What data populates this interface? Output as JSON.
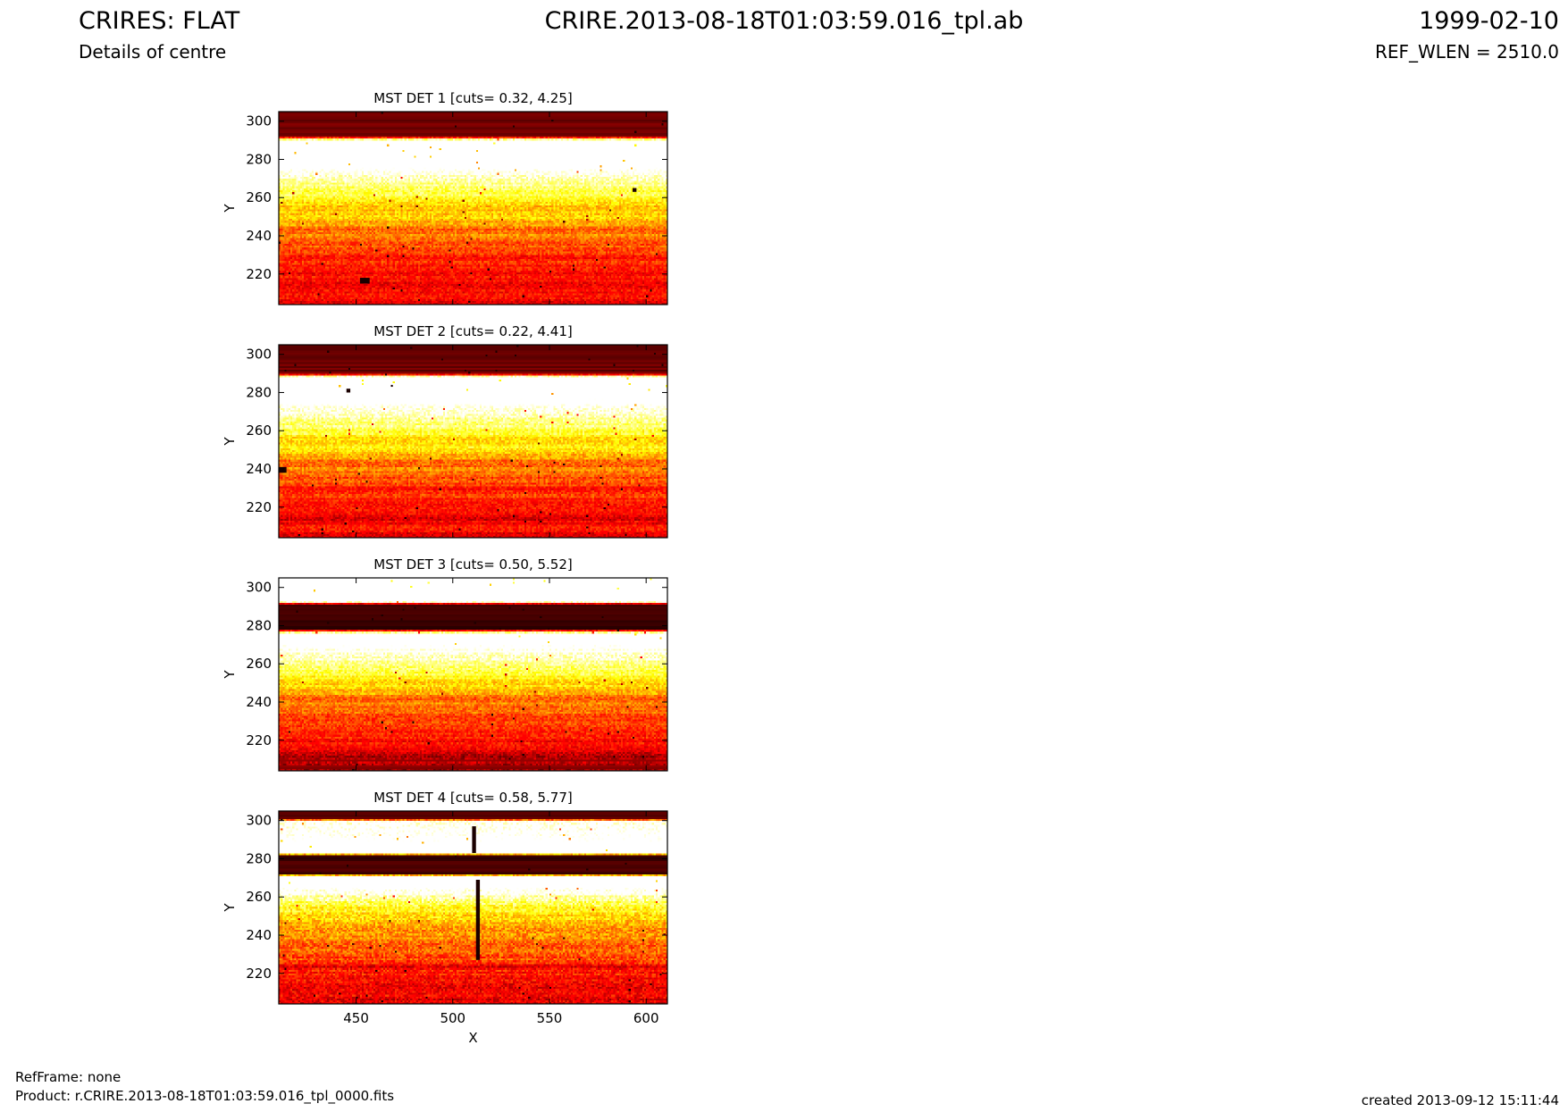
{
  "header": {
    "title": "CRIRES: FLAT",
    "subtitle": "Details of centre",
    "filename": "CRIRE.2013-08-18T01:03:59.016_tpl.ab",
    "date": "1999-02-10",
    "ref_wlen": "REF_WLEN = 2510.0"
  },
  "footer": {
    "refframe": "RefFrame: none",
    "product": "Product: r.CRIRE.2013-08-18T01:03:59.016_tpl_0000.fits",
    "created": "created 2013-09-12 15:11:44"
  },
  "colors": {
    "colormap": "hot",
    "dark_red": "#7f0000",
    "very_dark": "#3d0000",
    "red": "#e31a00",
    "orange": "#ff7f00",
    "yellow": "#ffff00",
    "white": "#ffffff"
  },
  "chart_data": [
    {
      "type": "heatmap",
      "title": "MST DET 1 [cuts= 0.32, 4.25]",
      "ylabel": "Y",
      "xlabel": "",
      "xlim": [
        410,
        611
      ],
      "ylim": [
        204,
        305
      ],
      "xticks": [
        450,
        500,
        550,
        600
      ],
      "xtick_labels_visible": false,
      "yticks": [
        220,
        240,
        260,
        280,
        300
      ],
      "profile": [
        [
          204,
          0.3
        ],
        [
          210,
          0.38
        ],
        [
          214,
          0.3
        ],
        [
          218,
          0.4
        ],
        [
          222,
          0.35
        ],
        [
          226,
          0.44
        ],
        [
          229,
          0.38
        ],
        [
          232,
          0.46
        ],
        [
          236,
          0.5
        ],
        [
          240,
          0.56
        ],
        [
          243,
          0.5
        ],
        [
          246,
          0.6
        ],
        [
          249,
          0.66
        ],
        [
          252,
          0.7
        ],
        [
          255,
          0.64
        ],
        [
          258,
          0.74
        ],
        [
          261,
          0.8
        ],
        [
          264,
          0.85
        ],
        [
          268,
          0.92
        ],
        [
          272,
          0.98
        ],
        [
          276,
          1.06
        ],
        [
          280,
          1.2
        ],
        [
          290,
          1.2
        ],
        [
          292,
          0.12
        ],
        [
          305,
          0.12
        ]
      ],
      "noise": 0.09,
      "defects": [
        {
          "x": 452,
          "y": 215,
          "w": 5,
          "h": 3
        },
        {
          "x": 593,
          "y": 263,
          "w": 2,
          "h": 2
        }
      ]
    },
    {
      "type": "heatmap",
      "title": "MST DET 2 [cuts= 0.22, 4.41]",
      "ylabel": "Y",
      "xlabel": "",
      "xlim": [
        410,
        611
      ],
      "ylim": [
        204,
        305
      ],
      "xticks": [
        450,
        500,
        550,
        600
      ],
      "xtick_labels_visible": false,
      "yticks": [
        220,
        240,
        260,
        280,
        300
      ],
      "profile": [
        [
          204,
          0.3
        ],
        [
          210,
          0.38
        ],
        [
          214,
          0.3
        ],
        [
          218,
          0.4
        ],
        [
          222,
          0.34
        ],
        [
          226,
          0.45
        ],
        [
          229,
          0.38
        ],
        [
          232,
          0.48
        ],
        [
          236,
          0.5
        ],
        [
          240,
          0.56
        ],
        [
          243,
          0.5
        ],
        [
          246,
          0.62
        ],
        [
          249,
          0.68
        ],
        [
          252,
          0.72
        ],
        [
          255,
          0.66
        ],
        [
          258,
          0.78
        ],
        [
          261,
          0.84
        ],
        [
          264,
          0.88
        ],
        [
          268,
          0.95
        ],
        [
          272,
          1.02
        ],
        [
          276,
          1.1
        ],
        [
          280,
          1.2
        ],
        [
          288,
          1.2
        ],
        [
          290,
          0.12
        ],
        [
          305,
          0.12
        ]
      ],
      "noise": 0.09,
      "defects": [
        {
          "x": 445,
          "y": 280,
          "w": 2,
          "h": 2
        },
        {
          "x": 468,
          "y": 283,
          "w": 1,
          "h": 1
        },
        {
          "x": 410,
          "y": 238,
          "w": 4,
          "h": 3
        }
      ]
    },
    {
      "type": "heatmap",
      "title": "MST DET 3 [cuts= 0.50, 5.52]",
      "ylabel": "Y",
      "xlabel": "",
      "xlim": [
        410,
        611
      ],
      "ylim": [
        204,
        305
      ],
      "xticks": [
        450,
        500,
        550,
        600
      ],
      "xtick_labels_visible": false,
      "yticks": [
        220,
        240,
        260,
        280,
        300
      ],
      "profile": [
        [
          204,
          0.16
        ],
        [
          208,
          0.22
        ],
        [
          212,
          0.2
        ],
        [
          216,
          0.32
        ],
        [
          220,
          0.38
        ],
        [
          224,
          0.42
        ],
        [
          228,
          0.46
        ],
        [
          232,
          0.42
        ],
        [
          235,
          0.52
        ],
        [
          239,
          0.56
        ],
        [
          242,
          0.52
        ],
        [
          245,
          0.62
        ],
        [
          248,
          0.68
        ],
        [
          251,
          0.72
        ],
        [
          254,
          0.78
        ],
        [
          257,
          0.84
        ],
        [
          260,
          0.9
        ],
        [
          264,
          0.98
        ],
        [
          268,
          1.05
        ],
        [
          272,
          1.14
        ],
        [
          276,
          1.2
        ],
        [
          278,
          0.05
        ],
        [
          291,
          0.05
        ],
        [
          293,
          1.25
        ],
        [
          305,
          1.25
        ]
      ],
      "noise": 0.09,
      "defects": []
    },
    {
      "type": "heatmap",
      "title": "MST DET 4 [cuts= 0.58, 5.77]",
      "ylabel": "Y",
      "xlabel": "X",
      "xlim": [
        410,
        611
      ],
      "ylim": [
        204,
        305
      ],
      "xticks": [
        450,
        500,
        550,
        600
      ],
      "xtick_labels_visible": true,
      "yticks": [
        220,
        240,
        260,
        280,
        300
      ],
      "profile": [
        [
          204,
          0.28
        ],
        [
          210,
          0.34
        ],
        [
          216,
          0.36
        ],
        [
          222,
          0.4
        ],
        [
          224,
          0.28
        ],
        [
          226,
          0.46
        ],
        [
          232,
          0.5
        ],
        [
          238,
          0.56
        ],
        [
          244,
          0.62
        ],
        [
          250,
          0.7
        ],
        [
          256,
          0.8
        ],
        [
          260,
          0.92
        ],
        [
          264,
          1.06
        ],
        [
          268,
          1.2
        ],
        [
          271,
          1.2
        ],
        [
          272,
          0.06
        ],
        [
          282,
          0.06
        ],
        [
          283,
          1.2
        ],
        [
          290,
          1.1
        ],
        [
          296,
          1.04
        ],
        [
          300,
          1.04
        ],
        [
          301,
          0.1
        ],
        [
          305,
          0.1
        ]
      ],
      "noise": 0.11,
      "defects": [
        {
          "x": 510,
          "y": 283,
          "w": 2,
          "h": 14
        },
        {
          "x": 512,
          "y": 227,
          "w": 2,
          "h": 42
        }
      ]
    }
  ]
}
